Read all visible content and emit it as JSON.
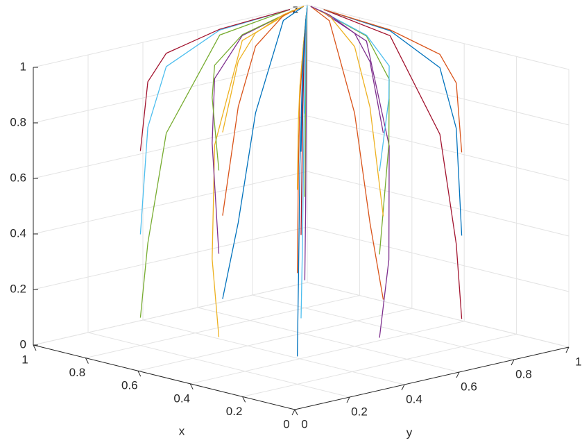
{
  "chart_data": {
    "type": "line3d",
    "xlabel": "x",
    "ylabel": "y",
    "zlabel": "z",
    "xlim": [
      0,
      1
    ],
    "ylim": [
      0,
      1
    ],
    "zlim": [
      0,
      1
    ],
    "xticks": [
      0,
      0.2,
      0.4,
      0.6,
      0.8,
      1
    ],
    "yticks": [
      0,
      0.2,
      0.4,
      0.6,
      0.8,
      1
    ],
    "zticks": [
      0,
      0.2,
      0.4,
      0.6,
      0.8,
      1
    ],
    "grid": true,
    "series": [
      {
        "color": "#0072BD",
        "x": [
          0.2,
          0.292,
          0.405,
          0.649,
          0.932
        ],
        "y": [
          0.2,
          0.292,
          0.405,
          0.649,
          0.932
        ],
        "z": [
          0.1,
          0.332,
          0.691,
          0.978,
          1
        ]
      },
      {
        "color": "#D95319",
        "x": [
          0.2,
          0.292,
          0.405,
          0.649,
          0.932
        ],
        "y": [
          0.2,
          0.292,
          0.405,
          0.649,
          0.932
        ],
        "z": [
          0.4,
          0.749,
          0.931,
          0.996,
          1
        ]
      },
      {
        "color": "#EDB120",
        "x": [
          0.2,
          0.292,
          0.405,
          0.649,
          0.932
        ],
        "y": [
          0.2,
          0.292,
          0.405,
          0.649,
          0.932
        ],
        "z": [
          0.7,
          0.913,
          0.979,
          0.999,
          1
        ]
      },
      {
        "color": "#7E2F8E",
        "x": [
          0.2,
          0.292,
          0.405,
          0.649,
          0.932
        ],
        "y": [
          0.5,
          0.622,
          0.731,
          0.881,
          0.982
        ],
        "z": [
          0.1,
          0.332,
          0.691,
          0.978,
          1
        ]
      },
      {
        "color": "#77AC30",
        "x": [
          0.2,
          0.292,
          0.405,
          0.649,
          0.932
        ],
        "y": [
          0.5,
          0.622,
          0.731,
          0.881,
          0.982
        ],
        "z": [
          0.4,
          0.749,
          0.931,
          0.996,
          1
        ]
      },
      {
        "color": "#4DBEEE",
        "x": [
          0.2,
          0.292,
          0.405,
          0.649,
          0.932
        ],
        "y": [
          0.5,
          0.622,
          0.731,
          0.881,
          0.982
        ],
        "z": [
          0.7,
          0.913,
          0.979,
          0.999,
          1
        ]
      },
      {
        "color": "#A2142F",
        "x": [
          0.2,
          0.292,
          0.405,
          0.649,
          0.932
        ],
        "y": [
          0.8,
          0.868,
          0.916,
          0.967,
          0.995
        ],
        "z": [
          0.1,
          0.332,
          0.691,
          0.978,
          1
        ]
      },
      {
        "color": "#0072BD",
        "x": [
          0.2,
          0.292,
          0.405,
          0.649,
          0.932
        ],
        "y": [
          0.8,
          0.868,
          0.916,
          0.967,
          0.995
        ],
        "z": [
          0.4,
          0.749,
          0.931,
          0.996,
          1
        ]
      },
      {
        "color": "#D95319",
        "x": [
          0.2,
          0.292,
          0.405,
          0.649,
          0.932
        ],
        "y": [
          0.8,
          0.868,
          0.916,
          0.967,
          0.995
        ],
        "z": [
          0.7,
          0.913,
          0.979,
          0.999,
          1
        ]
      },
      {
        "color": "#EDB120",
        "x": [
          0.5,
          0.622,
          0.731,
          0.881,
          0.982
        ],
        "y": [
          0.2,
          0.292,
          0.405,
          0.649,
          0.932
        ],
        "z": [
          0.1,
          0.332,
          0.691,
          0.978,
          1
        ]
      },
      {
        "color": "#7E2F8E",
        "x": [
          0.5,
          0.622,
          0.731,
          0.881,
          0.982
        ],
        "y": [
          0.2,
          0.292,
          0.405,
          0.649,
          0.932
        ],
        "z": [
          0.4,
          0.749,
          0.931,
          0.996,
          1
        ]
      },
      {
        "color": "#77AC30",
        "x": [
          0.5,
          0.622,
          0.731,
          0.881,
          0.982
        ],
        "y": [
          0.2,
          0.292,
          0.405,
          0.649,
          0.932
        ],
        "z": [
          0.7,
          0.913,
          0.979,
          0.999,
          1
        ]
      },
      {
        "color": "#4DBEEE",
        "x": [
          0.5,
          0.622,
          0.731,
          0.881,
          0.982
        ],
        "y": [
          0.5,
          0.622,
          0.731,
          0.881,
          0.982
        ],
        "z": [
          0.1,
          0.332,
          0.691,
          0.978,
          1
        ]
      },
      {
        "color": "#A2142F",
        "x": [
          0.5,
          0.622,
          0.731,
          0.881,
          0.982
        ],
        "y": [
          0.5,
          0.622,
          0.731,
          0.881,
          0.982
        ],
        "z": [
          0.4,
          0.749,
          0.931,
          0.996,
          1
        ]
      },
      {
        "color": "#0072BD",
        "x": [
          0.5,
          0.622,
          0.731,
          0.881,
          0.982
        ],
        "y": [
          0.5,
          0.622,
          0.731,
          0.881,
          0.982
        ],
        "z": [
          0.7,
          0.913,
          0.979,
          0.999,
          1
        ]
      },
      {
        "color": "#D95319",
        "x": [
          0.5,
          0.622,
          0.731,
          0.881,
          0.982
        ],
        "y": [
          0.8,
          0.868,
          0.916,
          0.967,
          0.995
        ],
        "z": [
          0.1,
          0.332,
          0.691,
          0.978,
          1
        ]
      },
      {
        "color": "#EDB120",
        "x": [
          0.5,
          0.622,
          0.731,
          0.881,
          0.982
        ],
        "y": [
          0.8,
          0.868,
          0.916,
          0.967,
          0.995
        ],
        "z": [
          0.4,
          0.749,
          0.931,
          0.996,
          1
        ]
      },
      {
        "color": "#7E2F8E",
        "x": [
          0.5,
          0.622,
          0.731,
          0.881,
          0.982
        ],
        "y": [
          0.8,
          0.868,
          0.916,
          0.967,
          0.995
        ],
        "z": [
          0.7,
          0.913,
          0.979,
          0.999,
          1
        ]
      },
      {
        "color": "#77AC30",
        "x": [
          0.8,
          0.868,
          0.916,
          0.967,
          0.995
        ],
        "y": [
          0.2,
          0.292,
          0.405,
          0.649,
          0.932
        ],
        "z": [
          0.1,
          0.332,
          0.691,
          0.978,
          1
        ]
      },
      {
        "color": "#4DBEEE",
        "x": [
          0.8,
          0.868,
          0.916,
          0.967,
          0.995
        ],
        "y": [
          0.2,
          0.292,
          0.405,
          0.649,
          0.932
        ],
        "z": [
          0.4,
          0.749,
          0.931,
          0.996,
          1
        ]
      },
      {
        "color": "#A2142F",
        "x": [
          0.8,
          0.868,
          0.916,
          0.967,
          0.995
        ],
        "y": [
          0.2,
          0.292,
          0.405,
          0.649,
          0.932
        ],
        "z": [
          0.7,
          0.913,
          0.979,
          0.999,
          1
        ]
      },
      {
        "color": "#0072BD",
        "x": [
          0.8,
          0.868,
          0.916,
          0.967,
          0.995
        ],
        "y": [
          0.5,
          0.622,
          0.731,
          0.881,
          0.982
        ],
        "z": [
          0.1,
          0.332,
          0.691,
          0.978,
          1
        ]
      },
      {
        "color": "#D95319",
        "x": [
          0.8,
          0.868,
          0.916,
          0.967,
          0.995
        ],
        "y": [
          0.5,
          0.622,
          0.731,
          0.881,
          0.982
        ],
        "z": [
          0.4,
          0.749,
          0.931,
          0.996,
          1
        ]
      },
      {
        "color": "#EDB120",
        "x": [
          0.8,
          0.868,
          0.916,
          0.967,
          0.995
        ],
        "y": [
          0.5,
          0.622,
          0.731,
          0.881,
          0.982
        ],
        "z": [
          0.7,
          0.913,
          0.979,
          0.999,
          1
        ]
      },
      {
        "color": "#7E2F8E",
        "x": [
          0.8,
          0.868,
          0.916,
          0.967,
          0.995
        ],
        "y": [
          0.8,
          0.868,
          0.916,
          0.967,
          0.995
        ],
        "z": [
          0.1,
          0.332,
          0.691,
          0.978,
          1
        ]
      },
      {
        "color": "#77AC30",
        "x": [
          0.8,
          0.868,
          0.916,
          0.967,
          0.995
        ],
        "y": [
          0.8,
          0.868,
          0.916,
          0.967,
          0.995
        ],
        "z": [
          0.4,
          0.749,
          0.931,
          0.996,
          1
        ]
      },
      {
        "color": "#4DBEEE",
        "x": [
          0.8,
          0.868,
          0.916,
          0.967,
          0.995
        ],
        "y": [
          0.8,
          0.868,
          0.916,
          0.967,
          0.995
        ],
        "z": [
          0.7,
          0.913,
          0.979,
          0.999,
          1
        ]
      }
    ]
  }
}
